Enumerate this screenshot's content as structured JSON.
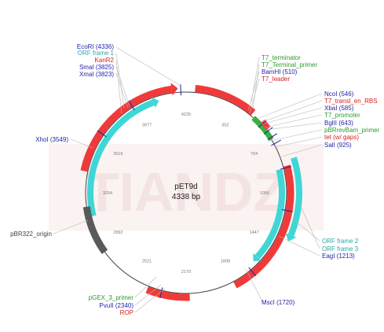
{
  "plasmid": {
    "name": "pET9d",
    "size": "4338 bp"
  },
  "watermark": "TIANDZ",
  "colors": {
    "blue": "#1f1fa6",
    "green": "#2c9a2c",
    "red": "#d42020",
    "teal": "#2aa7a7",
    "backbone": "#444444",
    "feat_red": "#f03a3a",
    "feat_cyan": "#3fd6d6",
    "feat_grey": "#5a5a5a",
    "feat_green": "#3cb043"
  },
  "ticks": [
    "4225",
    "352",
    "704",
    "1056",
    "1447",
    "1808",
    "2170",
    "2521",
    "2892",
    "3254",
    "3615",
    "3977"
  ],
  "labels_top_left": [
    {
      "text": "EcoRI (4336)",
      "color": "blue"
    },
    {
      "text": "ORF frame 1",
      "color": "teal"
    },
    {
      "text": "KanR2",
      "color": "red"
    },
    {
      "text": "SmaI (3825)",
      "color": "blue"
    },
    {
      "text": "XmaI (3823)",
      "color": "blue"
    }
  ],
  "labels_top_right": [
    {
      "text": "T7_terminator",
      "color": "green"
    },
    {
      "text": "T7_Terminal_primer",
      "color": "green"
    },
    {
      "text": "BamHI (510)",
      "color": "blue"
    },
    {
      "text": "T7_leader",
      "color": "red"
    }
  ],
  "labels_right": [
    {
      "text": "NcoI (546)",
      "color": "blue"
    },
    {
      "text": "T7_transl_en_RBS",
      "color": "red"
    },
    {
      "text": "XbaI (585)",
      "color": "blue"
    },
    {
      "text": "T7_promoter",
      "color": "green"
    },
    {
      "text": "BglII (643)",
      "color": "blue"
    },
    {
      "text": "pBRrevBam_primer",
      "color": "green"
    },
    {
      "text": "tet (w/ gaps)",
      "color": "red"
    },
    {
      "text": "SalI (925)",
      "color": "blue"
    }
  ],
  "labels_lower_right": [
    {
      "text": "ORF frame 2",
      "color": "teal"
    },
    {
      "text": "ORF frame 3",
      "color": "teal"
    },
    {
      "text": "EagI (1213)",
      "color": "blue"
    }
  ],
  "label_mscI": {
    "text": "MscI (1720)",
    "color": "blue"
  },
  "label_xhoI": {
    "text": "XhoI (3549)",
    "color": "blue"
  },
  "label_origin": {
    "text": "pBR322_origin",
    "color": "backbone"
  },
  "labels_bottom_left": [
    {
      "text": "pGEX_3_primer",
      "color": "green"
    },
    {
      "text": "PvuII (2340)",
      "color": "blue"
    },
    {
      "text": "ROP",
      "color": "red"
    }
  ]
}
